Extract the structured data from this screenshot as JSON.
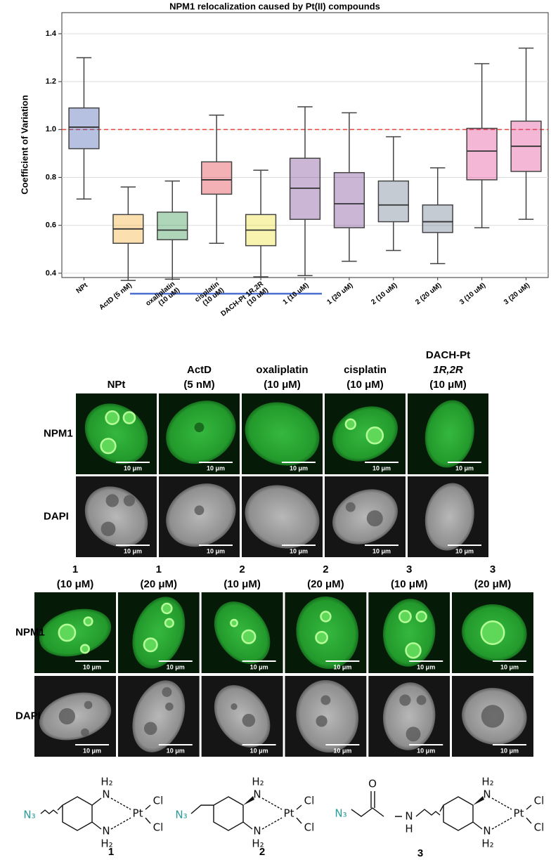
{
  "chart_data": {
    "type": "box",
    "title": "NPM1 relocalization caused by Pt(II) compounds",
    "y_label": "Coefficient of Variation",
    "categories": [
      [
        "NPt"
      ],
      [
        "ActD (5 nM)"
      ],
      [
        "oxaliplatin",
        "(10 uM)"
      ],
      [
        "cisplatin",
        "(10 uM)"
      ],
      [
        "DACH-Pt 1R,2R",
        "(10 uM)"
      ],
      [
        "1 (10 uM)"
      ],
      [
        "1 (20 uM)"
      ],
      [
        "2 (10 uM)"
      ],
      [
        "2 (20 uM)"
      ],
      [
        "3 (10 uM)"
      ],
      [
        "3 (20 uM)"
      ]
    ],
    "boxes": [
      {
        "whislo": 0.71,
        "q1": 0.92,
        "med": 1.01,
        "q3": 1.09,
        "whishi": 1.3,
        "color": "#2e4aa8"
      },
      {
        "whislo": 0.37,
        "q1": 0.525,
        "med": 0.585,
        "q3": 0.645,
        "whishi": 0.76,
        "color": "#f5a31a"
      },
      {
        "whislo": 0.375,
        "q1": 0.54,
        "med": 0.58,
        "q3": 0.655,
        "whishi": 0.785,
        "color": "#1e8a3a"
      },
      {
        "whislo": 0.525,
        "q1": 0.73,
        "med": 0.79,
        "q3": 0.865,
        "whishi": 1.06,
        "color": "#e0202a"
      },
      {
        "whislo": 0.385,
        "q1": 0.515,
        "med": 0.58,
        "q3": 0.645,
        "whishi": 0.83,
        "color": "#ece01e"
      },
      {
        "whislo": 0.39,
        "q1": 0.625,
        "med": 0.755,
        "q3": 0.88,
        "whishi": 1.095,
        "color": "#6a2e8a"
      },
      {
        "whislo": 0.45,
        "q1": 0.59,
        "med": 0.69,
        "q3": 0.82,
        "whishi": 1.07,
        "color": "#6a2e8a"
      },
      {
        "whislo": 0.495,
        "q1": 0.615,
        "med": 0.685,
        "q3": 0.785,
        "whishi": 0.97,
        "color": "#5a6b80"
      },
      {
        "whislo": 0.44,
        "q1": 0.57,
        "med": 0.615,
        "q3": 0.685,
        "whishi": 0.84,
        "color": "#5a6b80"
      },
      {
        "whislo": 0.59,
        "q1": 0.79,
        "med": 0.91,
        "q3": 1.005,
        "whishi": 1.275,
        "color": "#e0338a"
      },
      {
        "whislo": 0.625,
        "q1": 0.825,
        "med": 0.93,
        "q3": 1.035,
        "whishi": 1.34,
        "color": "#e0338a"
      }
    ],
    "reference_line": 1.0,
    "reference_color": "#e8453c",
    "ylim": [
      0.382,
      1.488
    ],
    "yticks": [
      0.4,
      0.6,
      0.8,
      {
        "value": 1,
        "label": "1.0"
      },
      1.2,
      1.4
    ],
    "grid": true
  },
  "image_panels": {
    "top": {
      "columns": [
        [
          "NPt"
        ],
        [
          "ActD",
          "(5 nM)"
        ],
        [
          "oxaliplatin",
          "(10 μM)"
        ],
        [
          "cisplatin",
          "(10 μM)"
        ],
        [
          "DACH-Pt",
          "1R,2R",
          "(10 μM)"
        ]
      ],
      "rows": [
        "NPM1",
        "DAPI"
      ]
    },
    "bottom": {
      "columns": [
        [
          "1",
          "(10 μM)"
        ],
        [
          "1",
          "(20 μM)"
        ],
        [
          "2",
          "(10 μM)"
        ],
        [
          "2",
          "(20 μM)"
        ],
        [
          "3",
          "(10 μM)"
        ],
        [
          "3",
          "(20 μM)"
        ]
      ],
      "rows": [
        "NPM1",
        "DAPI"
      ]
    },
    "scale_bar": "10 μm"
  },
  "structures": [
    {
      "label": "1",
      "atoms": [
        "N₃",
        "H₂",
        "N",
        "Pt",
        "Cl",
        "Cl",
        "N",
        "H₂"
      ]
    },
    {
      "label": "2",
      "atoms": [
        "N₃",
        "H₂",
        "N",
        "Pt",
        "Cl",
        "Cl",
        "N",
        "H₂"
      ]
    },
    {
      "label": "3",
      "atoms": [
        "N₃",
        "O",
        "N",
        "H",
        "H₂",
        "N",
        "Pt",
        "Cl",
        "Cl",
        "N",
        "H₂"
      ]
    }
  ]
}
